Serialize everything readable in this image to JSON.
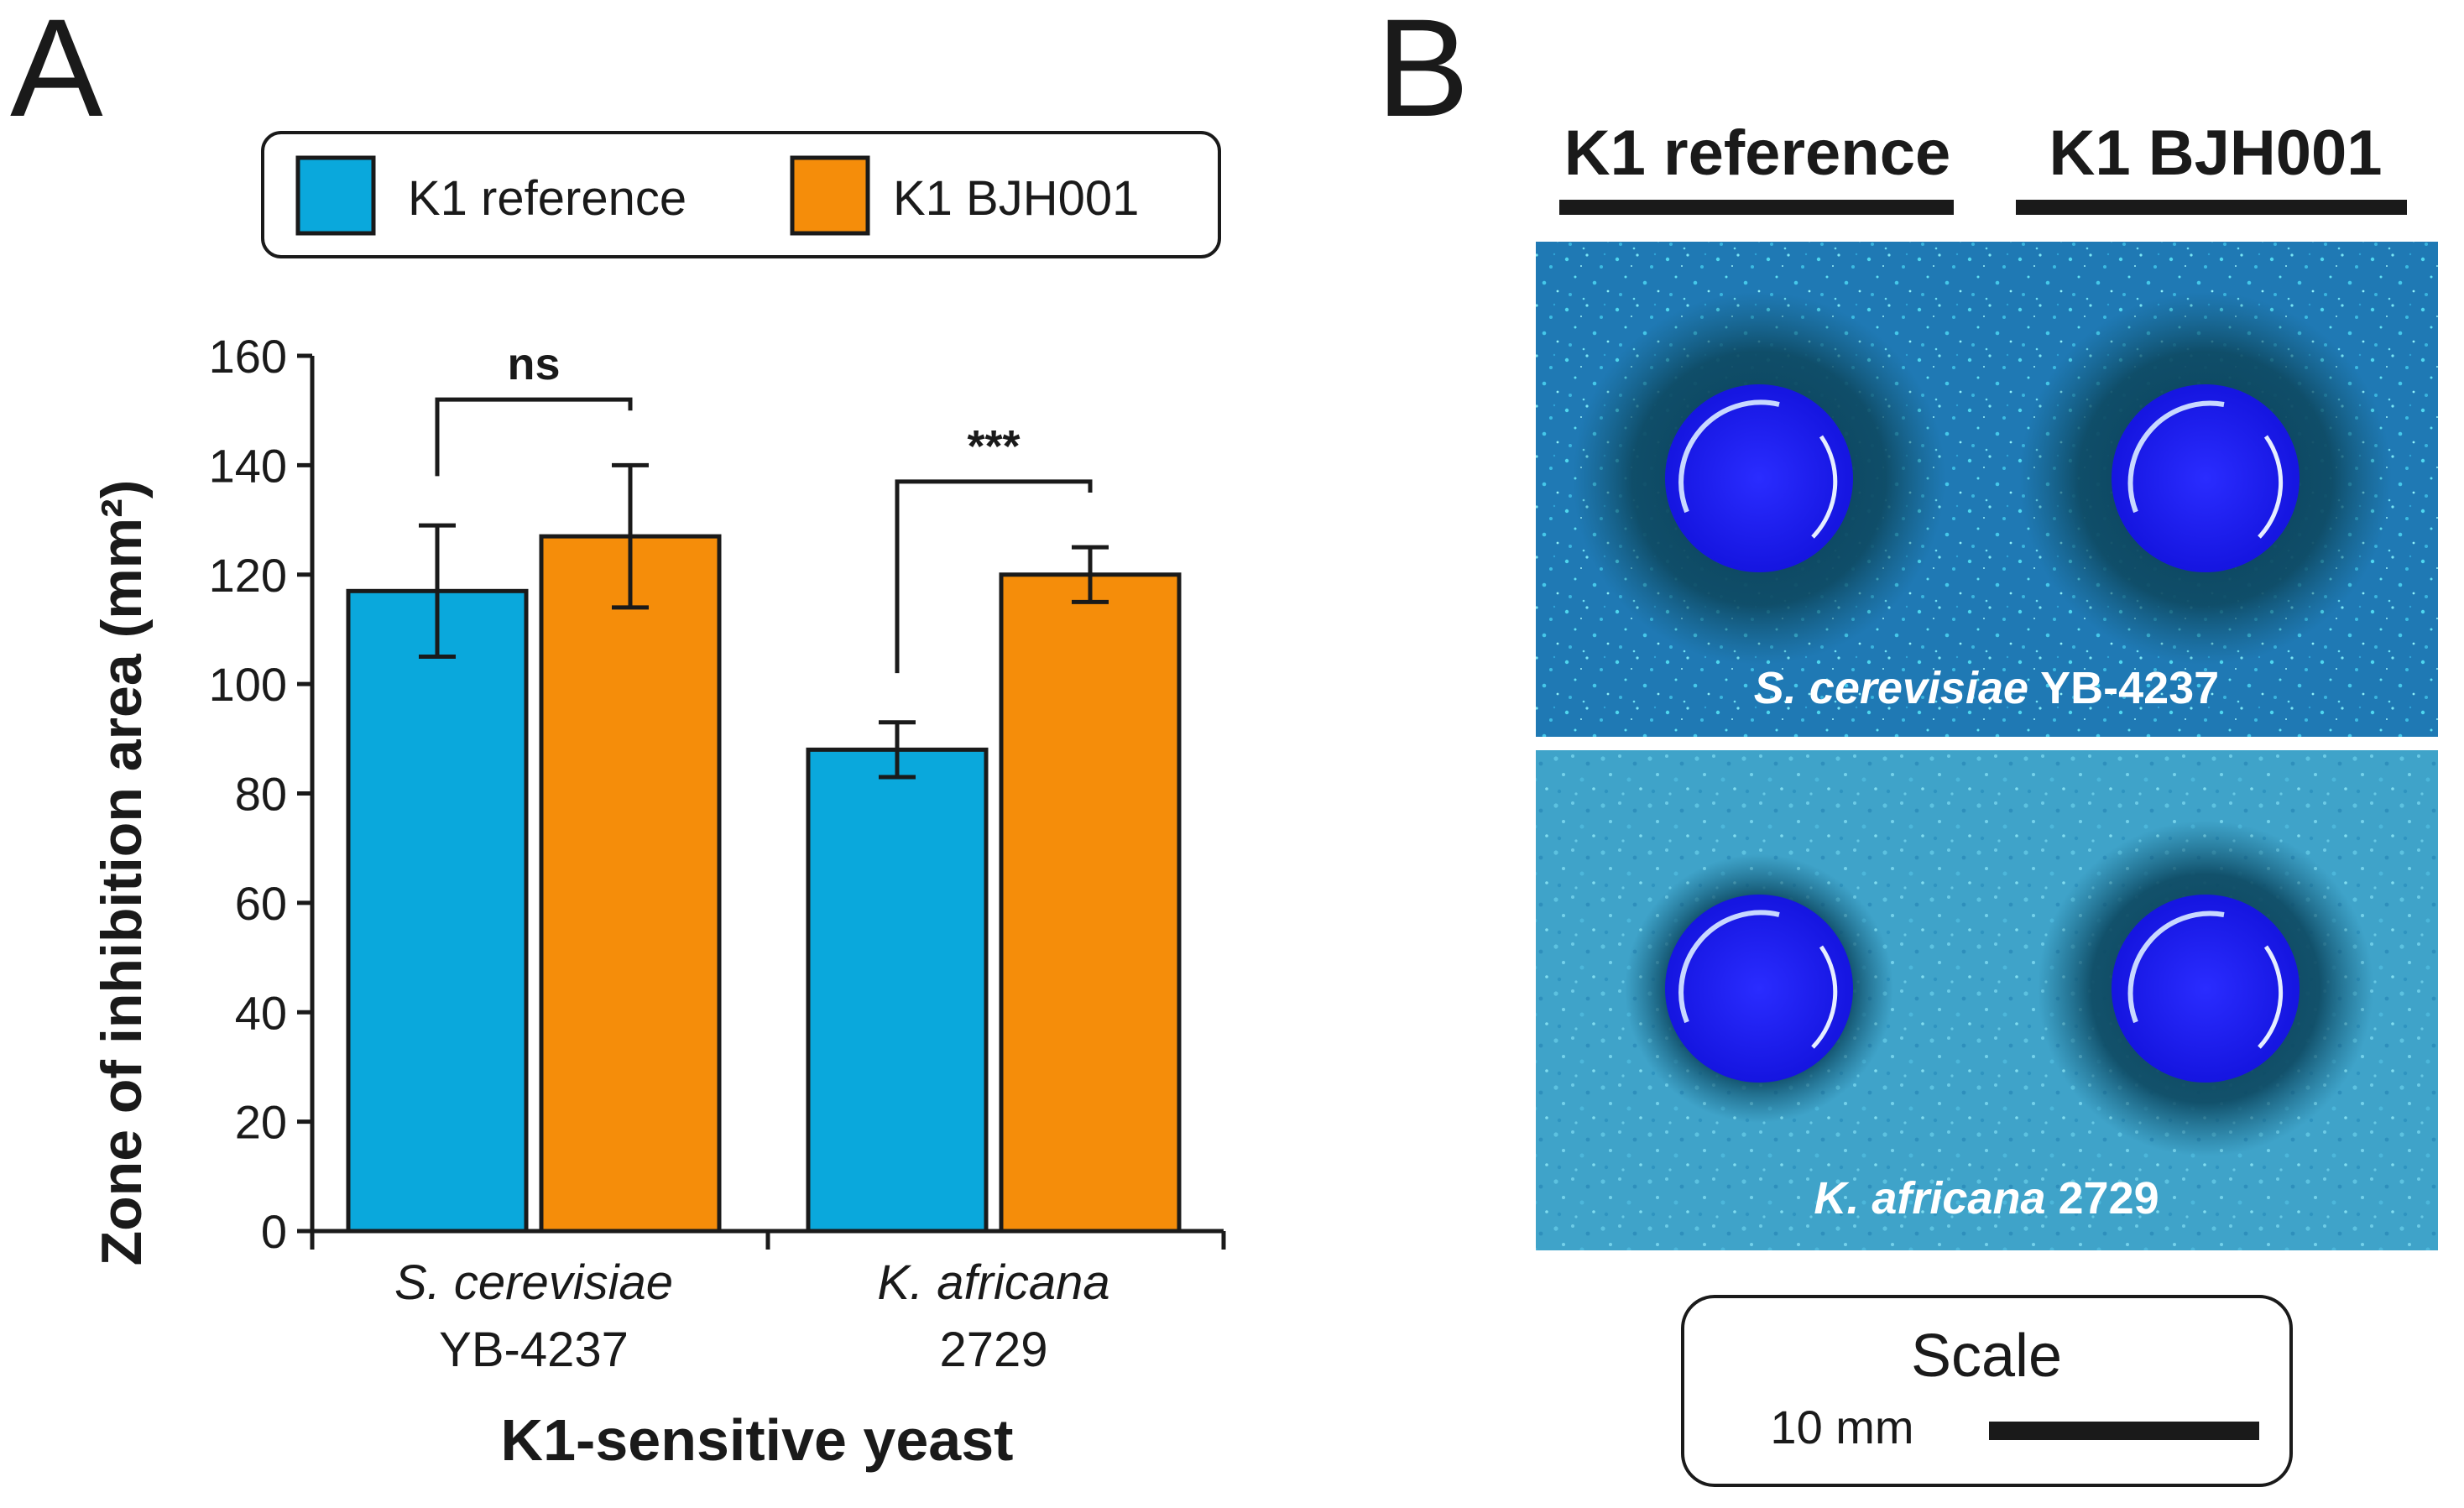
{
  "panel_a_label": "A",
  "panel_b_label": "B",
  "chart_data": {
    "type": "bar",
    "title": "",
    "ylabel": "Zone of inhibition area (mm²)",
    "xlabel": "K1-sensitive yeast",
    "ylim": [
      0,
      160
    ],
    "yticks": [
      0,
      20,
      40,
      60,
      80,
      100,
      120,
      140,
      160
    ],
    "categories": [
      {
        "name": "S. cerevisiae",
        "strain": "YB-4237"
      },
      {
        "name": "K. africana",
        "strain": "2729"
      }
    ],
    "series": [
      {
        "name": "K1 reference",
        "color": "#0aa8dc",
        "values": [
          117,
          88
        ],
        "errors": [
          12,
          5
        ]
      },
      {
        "name": "K1 BJH001",
        "color": "#f58d0a",
        "values": [
          127,
          120
        ],
        "errors": [
          13,
          5
        ]
      }
    ],
    "significance": [
      {
        "category": 0,
        "label": "ns"
      },
      {
        "category": 1,
        "label": "***"
      }
    ],
    "legend_position": "top"
  },
  "plates": {
    "column_headers": [
      "K1 reference",
      "K1 BJH001"
    ],
    "rows": [
      {
        "species": "S. cerevisiae",
        "strain": "YB-4237"
      },
      {
        "species": "K. africana",
        "strain": "2729"
      }
    ],
    "scale_title": "Scale",
    "scale_length": "10 mm"
  }
}
